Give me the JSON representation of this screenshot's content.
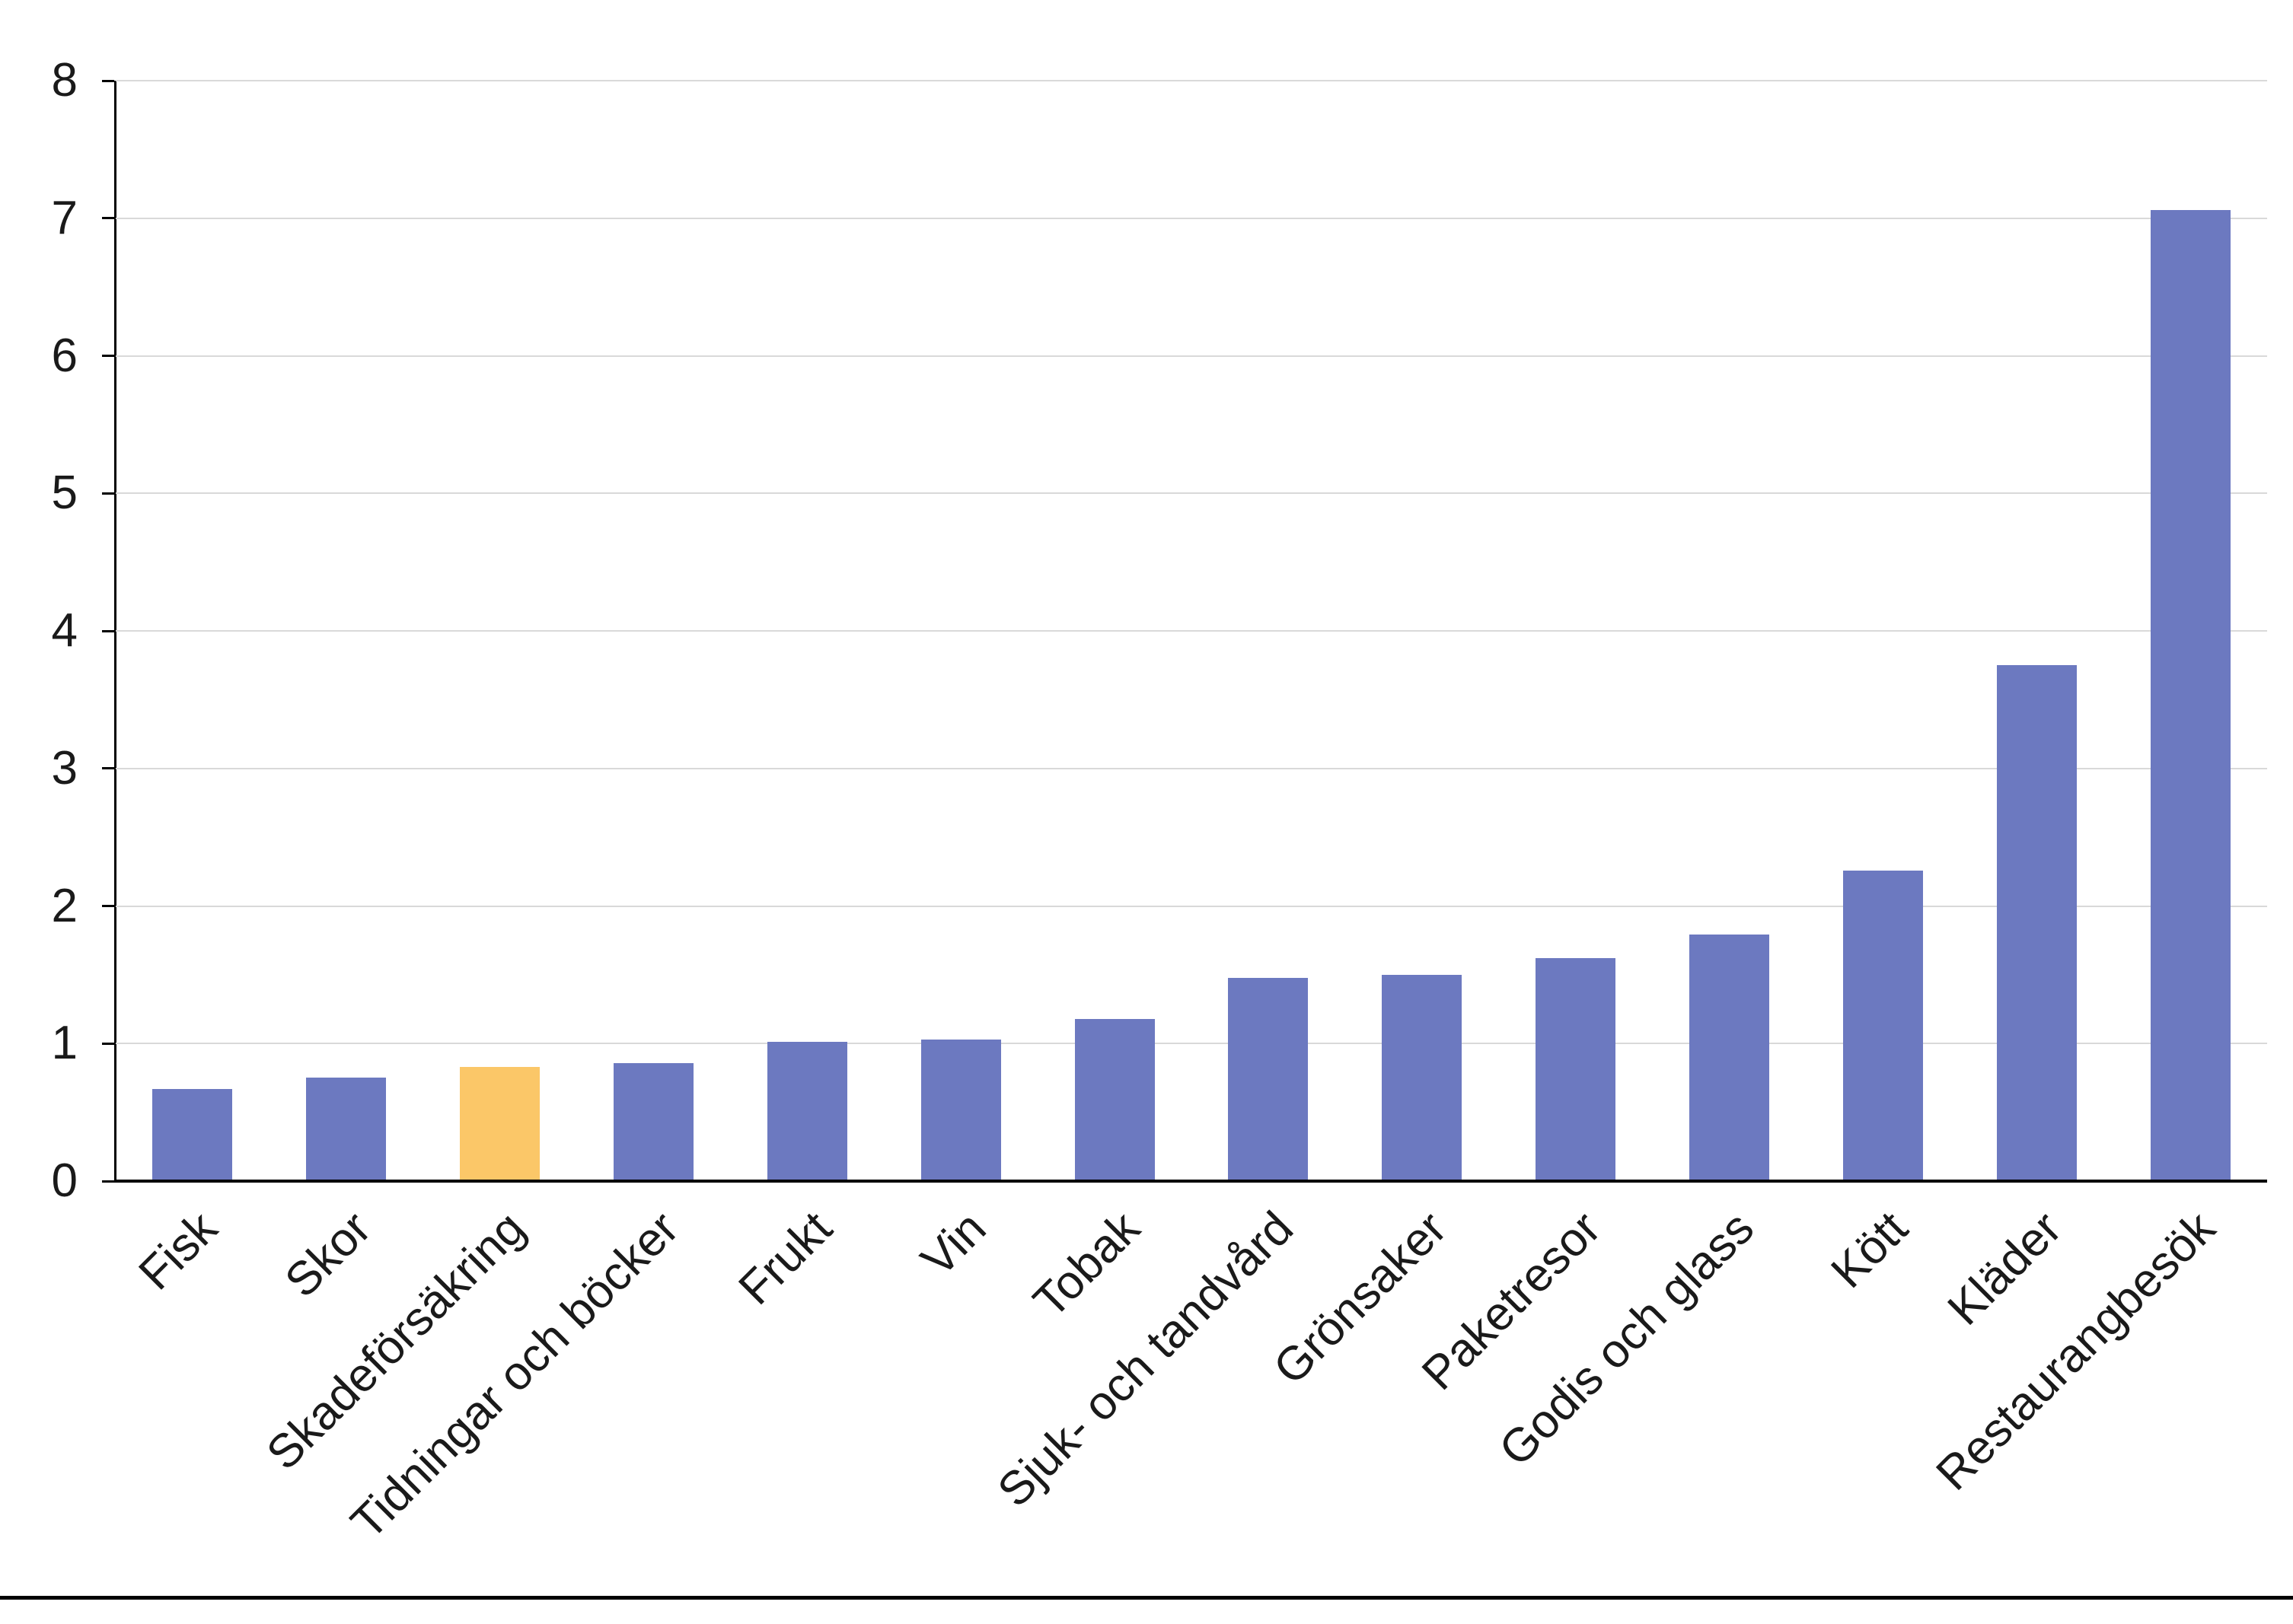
{
  "chart_data": {
    "type": "bar",
    "title": "",
    "xlabel": "",
    "ylabel": "",
    "categories": [
      "Fisk",
      "Skor",
      "Skadeförsäkring",
      "Tidningar och böcker",
      "Frukt",
      "Vin",
      "Tobak",
      "Sjuk- och tandvård",
      "Grönsaker",
      "Paketresor",
      "Godis och glass",
      "Kött",
      "Kläder",
      "Restaurangbesök"
    ],
    "values": [
      0.67,
      0.75,
      0.83,
      0.86,
      1.01,
      1.03,
      1.18,
      1.48,
      1.5,
      1.62,
      1.79,
      2.26,
      3.75,
      7.06
    ],
    "highlight_index": 2,
    "bar_color": "#6C79C0",
    "highlight_color": "#FBC768",
    "gridline_color": "#d9d9d9",
    "axis_color": "#000000",
    "ylim": [
      0,
      8
    ],
    "yticks": [
      0,
      1,
      2,
      3,
      4,
      5,
      6,
      7,
      8
    ],
    "grid": true,
    "legend": false
  }
}
